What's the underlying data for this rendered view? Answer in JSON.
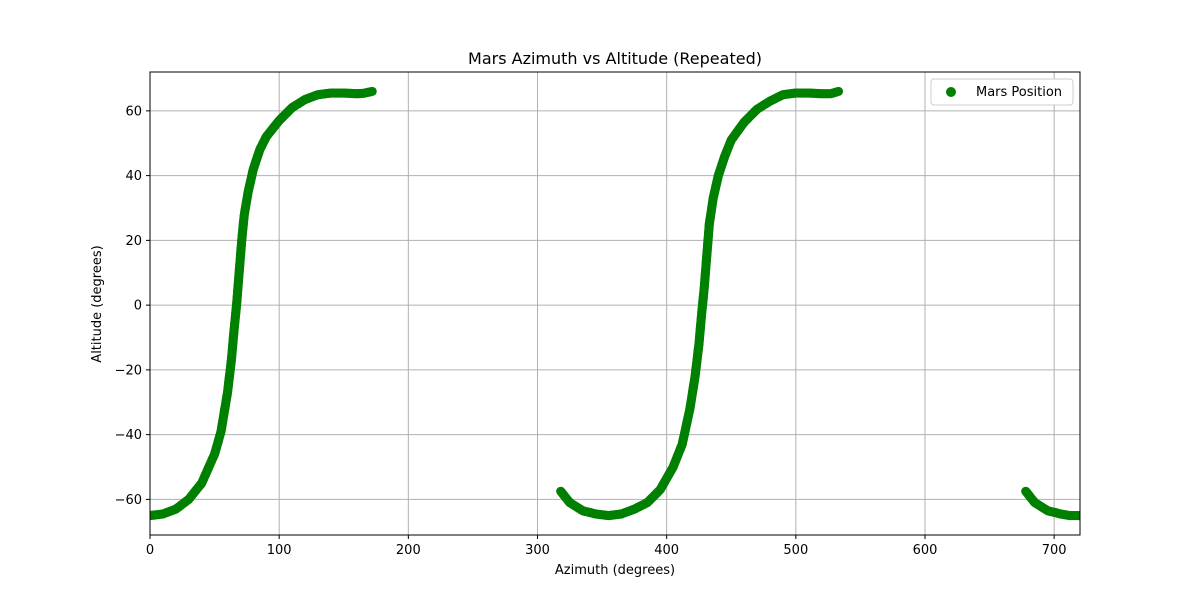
{
  "chart_data": {
    "type": "scatter",
    "title": "Mars Azimuth vs Altitude (Repeated)",
    "xlabel": "Azimuth (degrees)",
    "ylabel": "Altitude (degrees)",
    "xlim": [
      0,
      720
    ],
    "ylim": [
      -71,
      72
    ],
    "xticks": [
      0,
      100,
      200,
      300,
      400,
      500,
      600,
      700
    ],
    "yticks": [
      -60,
      -40,
      -20,
      0,
      20,
      40,
      60
    ],
    "xtick_labels": [
      "0",
      "100",
      "200",
      "300",
      "400",
      "500",
      "600",
      "700"
    ],
    "ytick_labels": [
      "−60",
      "−40",
      "−20",
      "0",
      "20",
      "40",
      "60"
    ],
    "grid": true,
    "legend_position": "top-right",
    "series": [
      {
        "name": "Mars Position",
        "color": "#008000",
        "marker": "circle",
        "segments": [
          [
            [
              0,
              -65
            ],
            [
              10,
              -64.5
            ],
            [
              20,
              -63
            ],
            [
              30,
              -60
            ],
            [
              40,
              -55
            ],
            [
              50,
              -46
            ],
            [
              55,
              -39
            ],
            [
              60,
              -27
            ],
            [
              63,
              -17
            ],
            [
              65,
              -8
            ],
            [
              67,
              0
            ],
            [
              69,
              10
            ],
            [
              71,
              20
            ],
            [
              73,
              28
            ],
            [
              76,
              35
            ],
            [
              80,
              42
            ],
            [
              85,
              48
            ],
            [
              90,
              52
            ],
            [
              100,
              57
            ],
            [
              110,
              61
            ],
            [
              120,
              63.5
            ],
            [
              130,
              65
            ],
            [
              140,
              65.5
            ],
            [
              150,
              65.5
            ],
            [
              160,
              65.3
            ],
            [
              165,
              65.4
            ],
            [
              172,
              66
            ]
          ],
          [
            [
              318,
              -57.5
            ],
            [
              325,
              -61
            ],
            [
              335,
              -63.5
            ],
            [
              345,
              -64.5
            ],
            [
              355,
              -65
            ],
            [
              365,
              -64.5
            ],
            [
              375,
              -63
            ],
            [
              385,
              -61
            ],
            [
              395,
              -57
            ],
            [
              405,
              -50
            ],
            [
              412,
              -43
            ],
            [
              418,
              -32
            ],
            [
              422,
              -22
            ],
            [
              425,
              -12
            ],
            [
              427,
              -3
            ],
            [
              429,
              5
            ],
            [
              431,
              15
            ],
            [
              433,
              25
            ],
            [
              436,
              33
            ],
            [
              440,
              40
            ],
            [
              445,
              46
            ],
            [
              450,
              51
            ],
            [
              460,
              56.5
            ],
            [
              470,
              60.5
            ],
            [
              480,
              63
            ],
            [
              490,
              65
            ],
            [
              500,
              65.5
            ],
            [
              510,
              65.5
            ],
            [
              520,
              65.3
            ],
            [
              527,
              65.3
            ],
            [
              533,
              66
            ]
          ],
          [
            [
              678,
              -57.5
            ],
            [
              685,
              -61
            ],
            [
              695,
              -63.5
            ],
            [
              705,
              -64.5
            ],
            [
              712,
              -65
            ],
            [
              720,
              -65
            ]
          ]
        ]
      }
    ]
  }
}
